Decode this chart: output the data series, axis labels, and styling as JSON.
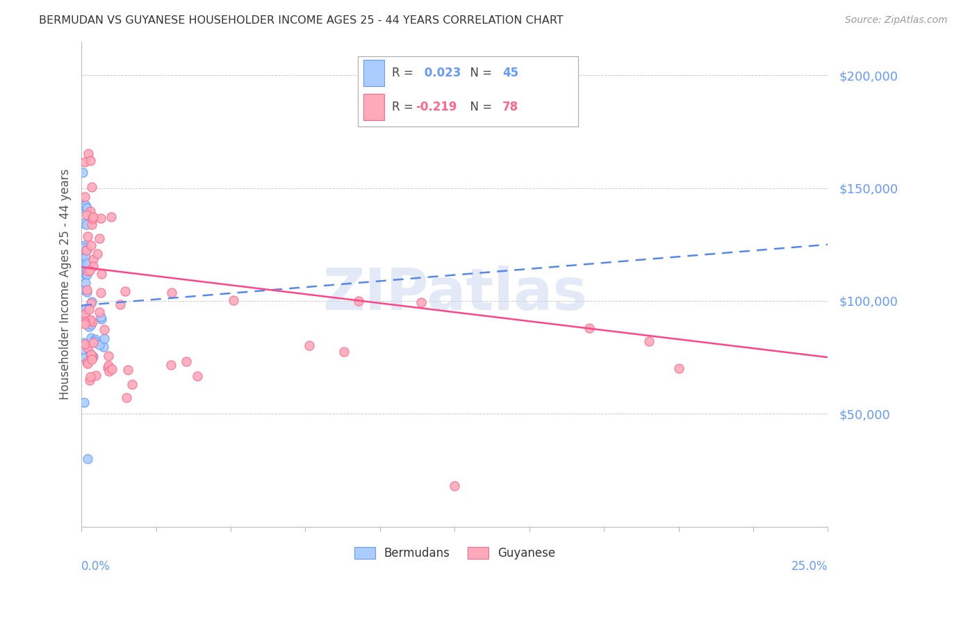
{
  "title": "BERMUDAN VS GUYANESE HOUSEHOLDER INCOME AGES 25 - 44 YEARS CORRELATION CHART",
  "source": "Source: ZipAtlas.com",
  "ylabel": "Householder Income Ages 25 - 44 years",
  "ytick_values": [
    50000,
    100000,
    150000,
    200000
  ],
  "ytick_labels": [
    "$50,000",
    "$100,000",
    "$150,000",
    "$200,000"
  ],
  "ylim": [
    0,
    215000
  ],
  "xlim": [
    0.0,
    0.25
  ],
  "blue_color": "#6699ff",
  "pink_color": "#ff6688",
  "blue_fill": "#aaccff",
  "pink_fill": "#ffaabb",
  "blue_line": "#5588ee",
  "pink_line": "#ff4488",
  "title_color": "#333333",
  "source_color": "#999999",
  "grid_color": "#cccccc",
  "watermark": "ZIPatlas",
  "legend_r1_label": "R = ",
  "legend_r1_val": "0.023",
  "legend_r1_n_label": "  N = ",
  "legend_r1_n_val": "45",
  "legend_r2_label": "R = ",
  "legend_r2_val": "-0.219",
  "legend_r2_n_label": "  N = ",
  "legend_r2_n_val": "78",
  "berm_r": 0.023,
  "guy_r": -0.219,
  "berm_n": 45,
  "guy_n": 78,
  "berm_line_x0": 0.0,
  "berm_line_x1": 0.25,
  "berm_line_y0": 98000,
  "berm_line_y1": 125000,
  "guy_line_x0": 0.0,
  "guy_line_x1": 0.25,
  "guy_line_y0": 115000,
  "guy_line_y1": 75000
}
